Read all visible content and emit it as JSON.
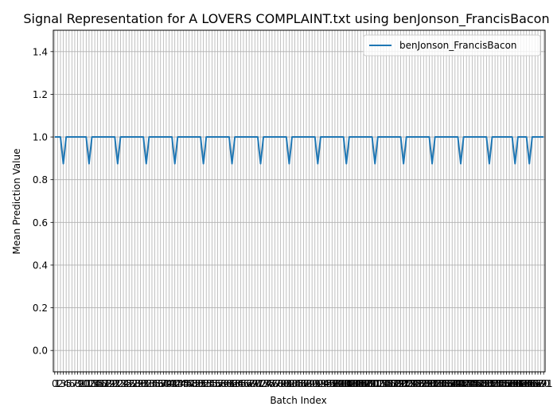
{
  "chart_data": {
    "type": "line",
    "title": "Signal Representation for A LOVERS COMPLAINT.txt using benJonson_FrancisBacon",
    "xlabel": "Batch Index",
    "ylabel": "Mean Prediction Value",
    "xlim": [
      -0.5,
      171.5
    ],
    "ylim": [
      -0.1,
      1.5
    ],
    "yticks": [
      0.0,
      0.2,
      0.4,
      0.6,
      0.8,
      1.0,
      1.2,
      1.4
    ],
    "ytick_labels": [
      "0.0",
      "0.2",
      "0.4",
      "0.6",
      "0.8",
      "1.0",
      "1.2",
      "1.4"
    ],
    "x_start": 0,
    "x_end": 171,
    "xtick_labels_every": 1,
    "grid": true,
    "legend_position": "upper-right",
    "series": [
      {
        "name": "benJonson_FrancisBacon",
        "color": "#1f77b4",
        "baseline_value": 1.0,
        "dip_value": 0.875,
        "dip_indices": [
          3,
          12,
          22,
          32,
          42,
          52,
          62,
          72,
          82,
          92,
          102,
          112,
          122,
          132,
          142,
          152,
          161,
          166
        ]
      }
    ]
  }
}
